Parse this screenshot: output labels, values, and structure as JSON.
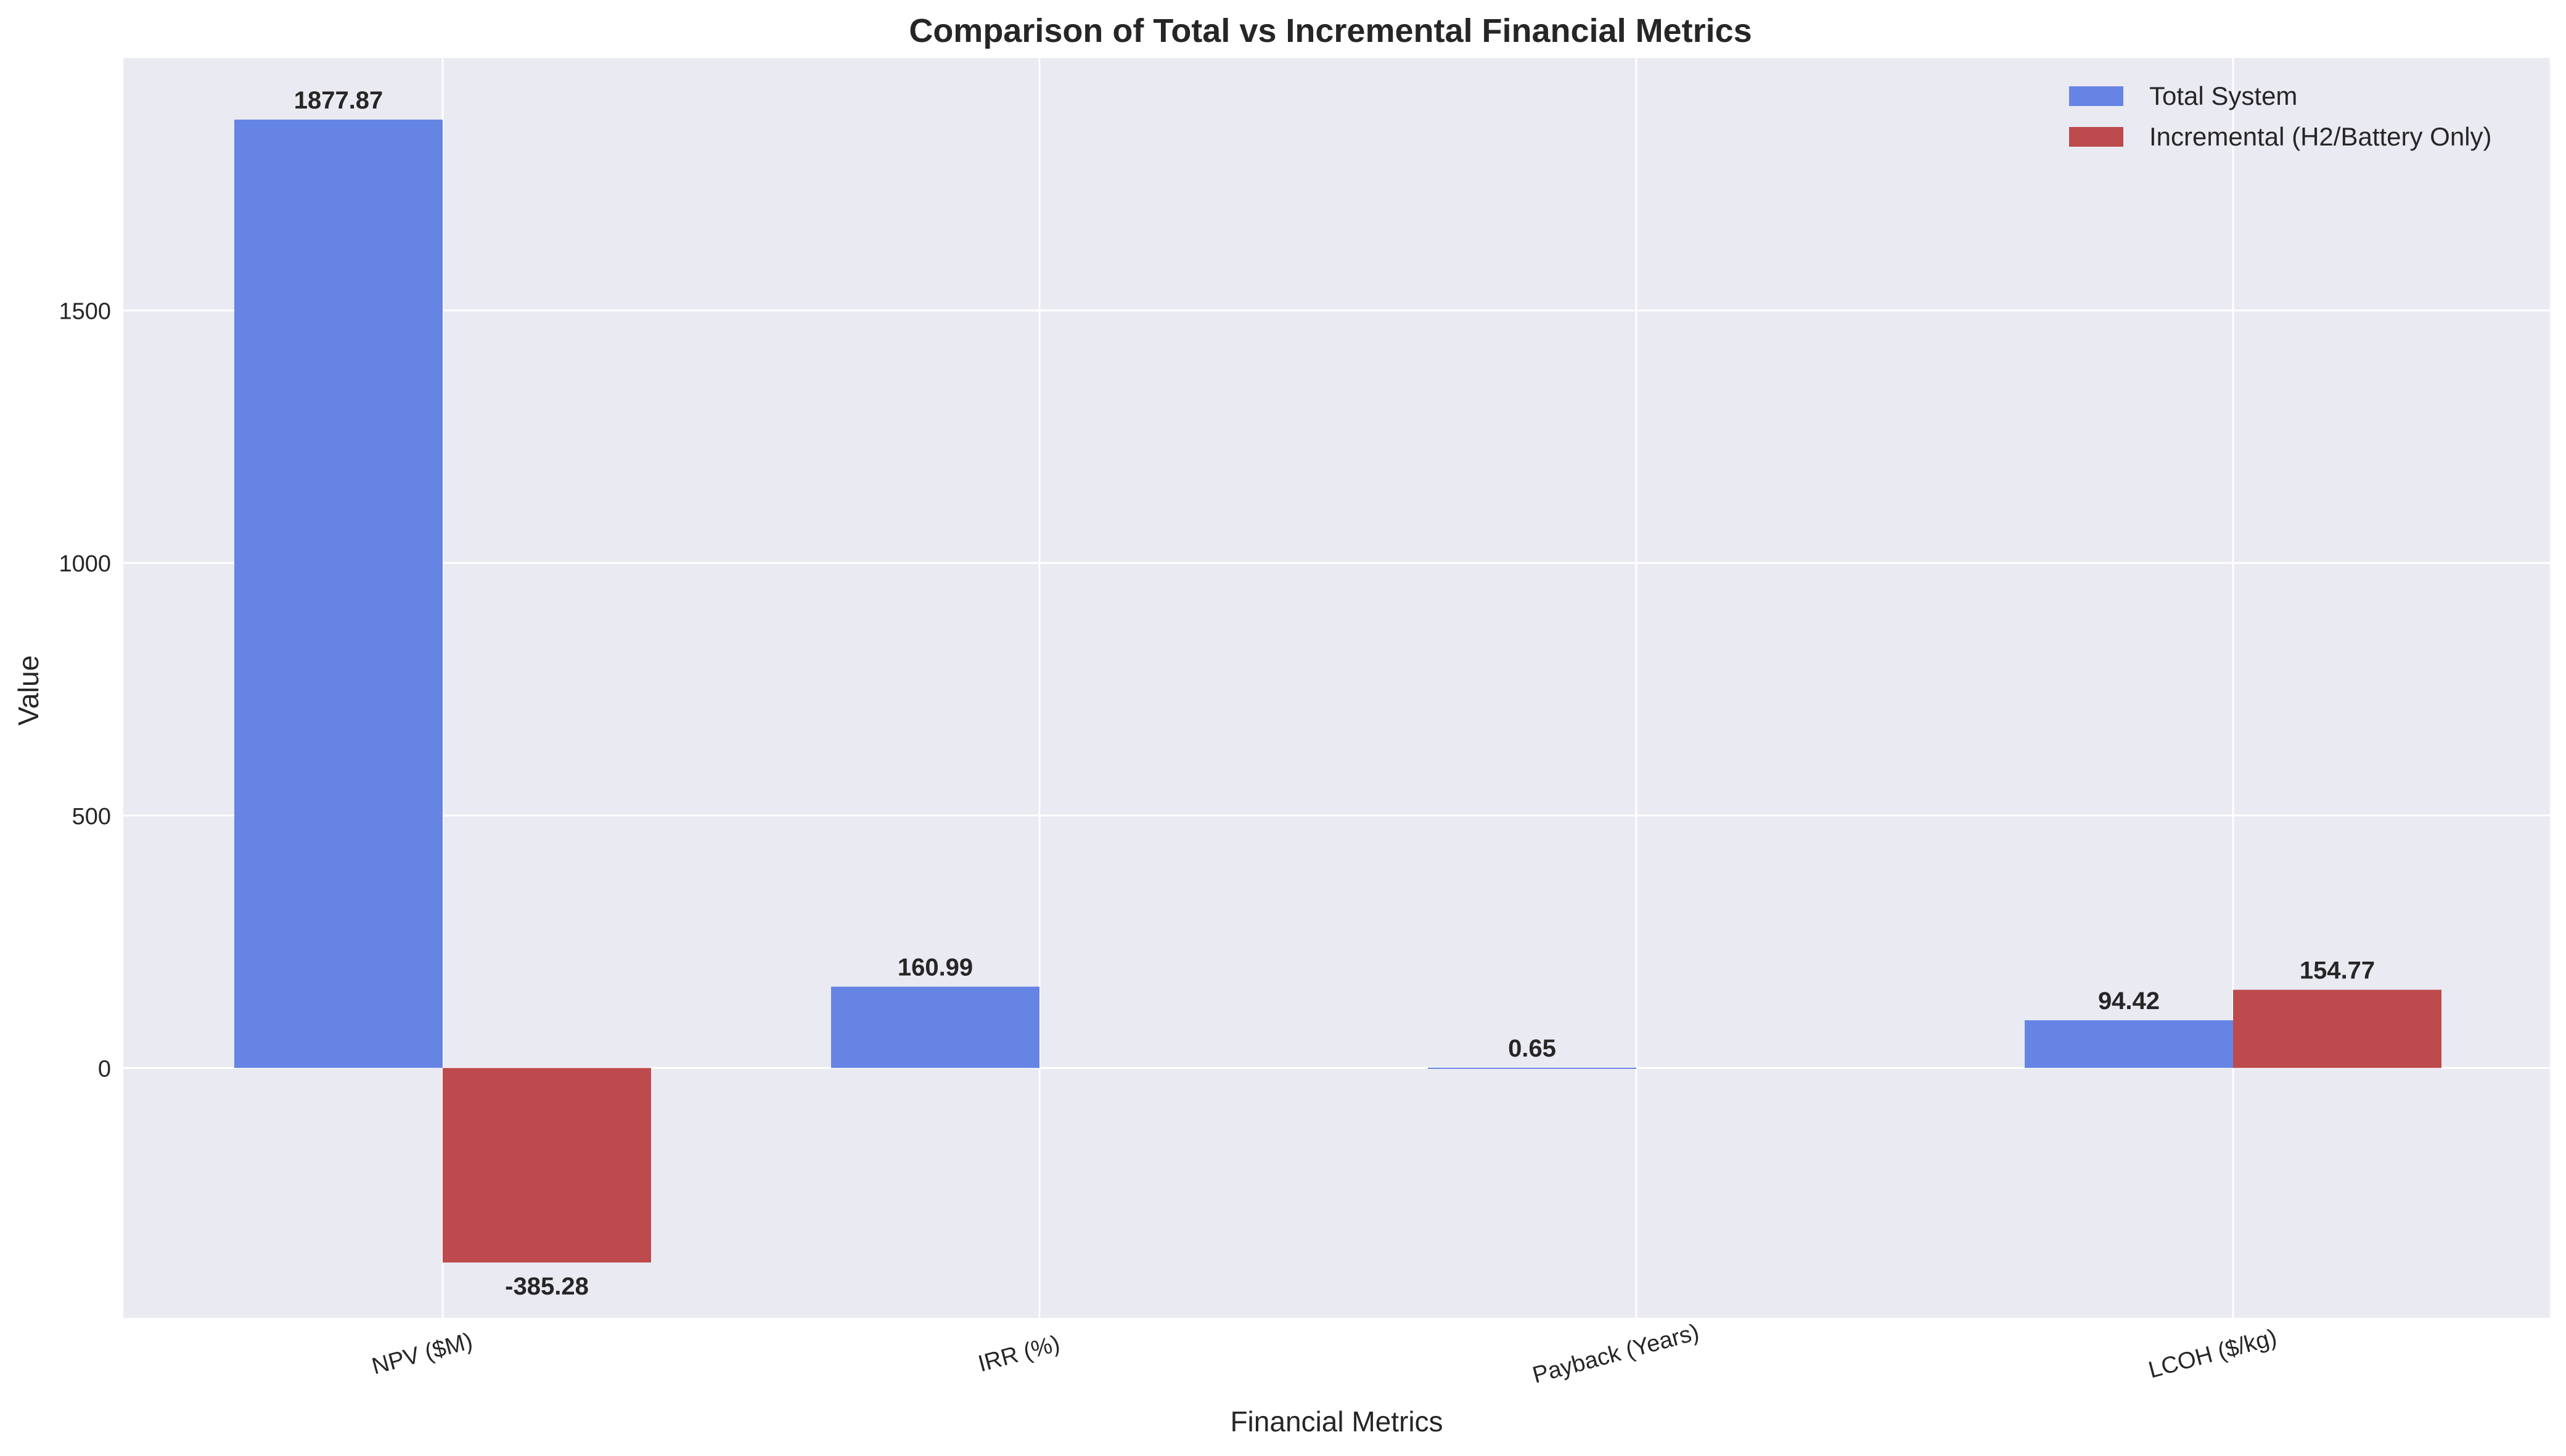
{
  "chart_data": {
    "type": "bar",
    "title": "Comparison of Total vs Incremental Financial Metrics",
    "xlabel": "Financial Metrics",
    "ylabel": "Value",
    "categories": [
      "NPV ($M)",
      "IRR (%)",
      "Payback (Years)",
      "LCOH ($/kg)"
    ],
    "series": [
      {
        "name": "Total System",
        "color": "#6684e4",
        "values": [
          1877.87,
          160.99,
          0.65,
          94.42
        ],
        "labels": [
          "1877.87",
          "160.99",
          "0.65",
          "94.42"
        ]
      },
      {
        "name": "Incremental (H2/Battery Only)",
        "color": "#bd4a4d",
        "values": [
          -385.28,
          null,
          null,
          154.77
        ],
        "labels": [
          "-385.28",
          null,
          null,
          "154.77"
        ]
      }
    ],
    "ylim": [
      -495,
      2000
    ],
    "yticks": [
      0,
      500,
      1000,
      1500
    ],
    "ytick_labels": [
      "0",
      "500",
      "1000",
      "1500"
    ],
    "grid": true,
    "legend": "top-right",
    "plot_background": "#eaeaf2",
    "grid_color": "#ffffff"
  }
}
